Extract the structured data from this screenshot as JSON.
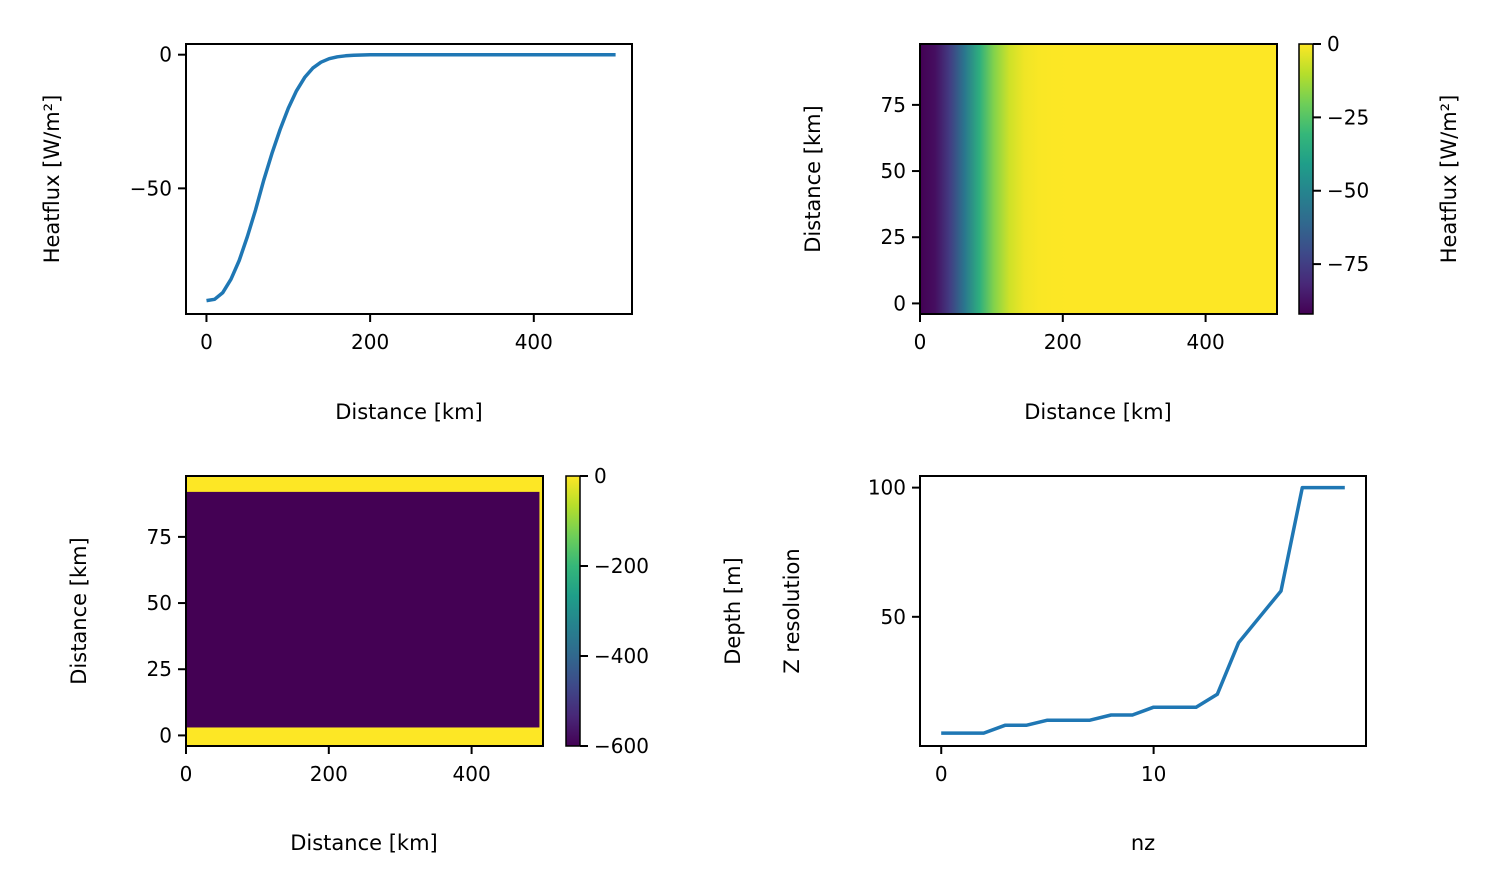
{
  "colors": {
    "line": "#1f77b4",
    "axis": "#000000",
    "viridis": [
      "#440154",
      "#482878",
      "#3e4989",
      "#31688e",
      "#26828e",
      "#1f9e89",
      "#35b779",
      "#6ece58",
      "#b5de2b",
      "#fde725"
    ]
  },
  "chart_data": [
    {
      "type": "line",
      "xlabel": "Distance [km]",
      "ylabel": "Heatflux [W/m²]",
      "xlim": [
        -25,
        520
      ],
      "ylim": [
        -97,
        4
      ],
      "xticks": [
        0,
        200,
        400
      ],
      "xtick_labels": [
        "0",
        "200",
        "400"
      ],
      "yticks": [
        0,
        -50
      ],
      "ytick_labels": [
        "0",
        "−50"
      ],
      "series": [
        {
          "x": [
            0,
            10,
            20,
            30,
            40,
            50,
            60,
            70,
            80,
            90,
            100,
            110,
            120,
            130,
            140,
            150,
            160,
            170,
            180,
            190,
            200,
            225,
            250,
            300,
            400,
            500
          ],
          "y": [
            -92,
            -91.5,
            -89,
            -84,
            -77,
            -68,
            -58,
            -47,
            -37,
            -28,
            -20,
            -13.5,
            -8.5,
            -5,
            -2.8,
            -1.5,
            -0.8,
            -0.4,
            -0.2,
            -0.1,
            0,
            0,
            0,
            0,
            0,
            0
          ]
        }
      ]
    },
    {
      "type": "heatmap",
      "xlabel": "Distance [km]",
      "ylabel": "Distance [km]",
      "xlim": [
        0,
        500
      ],
      "ylim": [
        -4,
        98
      ],
      "xticks": [
        0,
        200,
        400
      ],
      "xtick_labels": [
        "0",
        "200",
        "400"
      ],
      "yticks": [
        0,
        25,
        50,
        75
      ],
      "ytick_labels": [
        "0",
        "25",
        "50",
        "75"
      ],
      "field": "heatflux as function of x distance (top-left profile), constant in y",
      "colorbar": {
        "label": "Heatflux [W/m²]",
        "range": [
          -92,
          0
        ],
        "ticks": [
          0,
          -25,
          -50,
          -75
        ],
        "tick_labels": [
          "0",
          "−25",
          "−50",
          "−75"
        ]
      }
    },
    {
      "type": "heatmap",
      "xlabel": "Distance [km]",
      "ylabel": "Distance [km]",
      "xlim": [
        0,
        500
      ],
      "ylim": [
        -4,
        98
      ],
      "xticks": [
        0,
        200,
        400
      ],
      "xtick_labels": [
        "0",
        "200",
        "400"
      ],
      "yticks": [
        0,
        25,
        50,
        75
      ],
      "ytick_labels": [
        "0",
        "25",
        "50",
        "75"
      ],
      "regions": [
        {
          "name": "basin",
          "x": [
            0,
            495
          ],
          "y": [
            3,
            92
          ],
          "depth": -600
        },
        {
          "name": "walls",
          "depth": 0
        }
      ],
      "colorbar": {
        "label": "Depth [m]",
        "range": [
          -600,
          0
        ],
        "ticks": [
          0,
          -200,
          -400,
          -600
        ],
        "tick_labels": [
          "0",
          "−200",
          "−400",
          "−600"
        ]
      }
    },
    {
      "type": "line",
      "xlabel": "nz",
      "ylabel": "Z resolution",
      "xlim": [
        -1,
        20
      ],
      "ylim": [
        0,
        104.5
      ],
      "xticks": [
        0,
        10
      ],
      "xtick_labels": [
        "0",
        "10"
      ],
      "yticks": [
        50,
        100
      ],
      "ytick_labels": [
        "50",
        "100"
      ],
      "series": [
        {
          "x": [
            0,
            1,
            2,
            3,
            4,
            5,
            6,
            7,
            8,
            9,
            10,
            11,
            12,
            13,
            14,
            15,
            16,
            17,
            18,
            19
          ],
          "y": [
            5,
            5,
            5,
            8,
            8,
            10,
            10,
            10,
            12,
            12,
            15,
            15,
            15,
            20,
            40,
            50,
            60,
            100,
            100,
            100
          ]
        }
      ]
    }
  ]
}
